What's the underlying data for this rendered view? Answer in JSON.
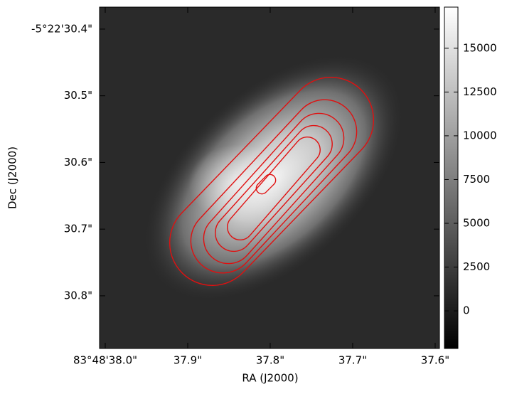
{
  "chart_data": {
    "type": "image",
    "xlabel": "RA (J2000)",
    "ylabel": "Dec (J2000)",
    "xlim": [
      38.0069,
      37.5948
    ],
    "xticks": [
      {
        "value": 38.0,
        "label": "83°48'38.0\""
      },
      {
        "value": 37.9,
        "label": "37.9\""
      },
      {
        "value": 37.8,
        "label": "37.8\""
      },
      {
        "value": 37.7,
        "label": "37.7\""
      },
      {
        "value": 37.6,
        "label": "37.6\""
      }
    ],
    "ylim": [
      30.879,
      30.367
    ],
    "yticks": [
      {
        "value": 30.4,
        "label": "-5°22'30.4\""
      },
      {
        "value": 30.5,
        "label": "30.5\""
      },
      {
        "value": 30.6,
        "label": "30.6\""
      },
      {
        "value": 30.7,
        "label": "30.7\""
      },
      {
        "value": 30.8,
        "label": "30.8\""
      }
    ],
    "colorbar": {
      "clim": [
        -2150,
        17350
      ],
      "ticks": [
        0,
        2500,
        5000,
        7500,
        10000,
        12500,
        15000
      ],
      "colors": [
        "#000000",
        "#ffffff"
      ]
    },
    "contour_color": "#e01010"
  }
}
